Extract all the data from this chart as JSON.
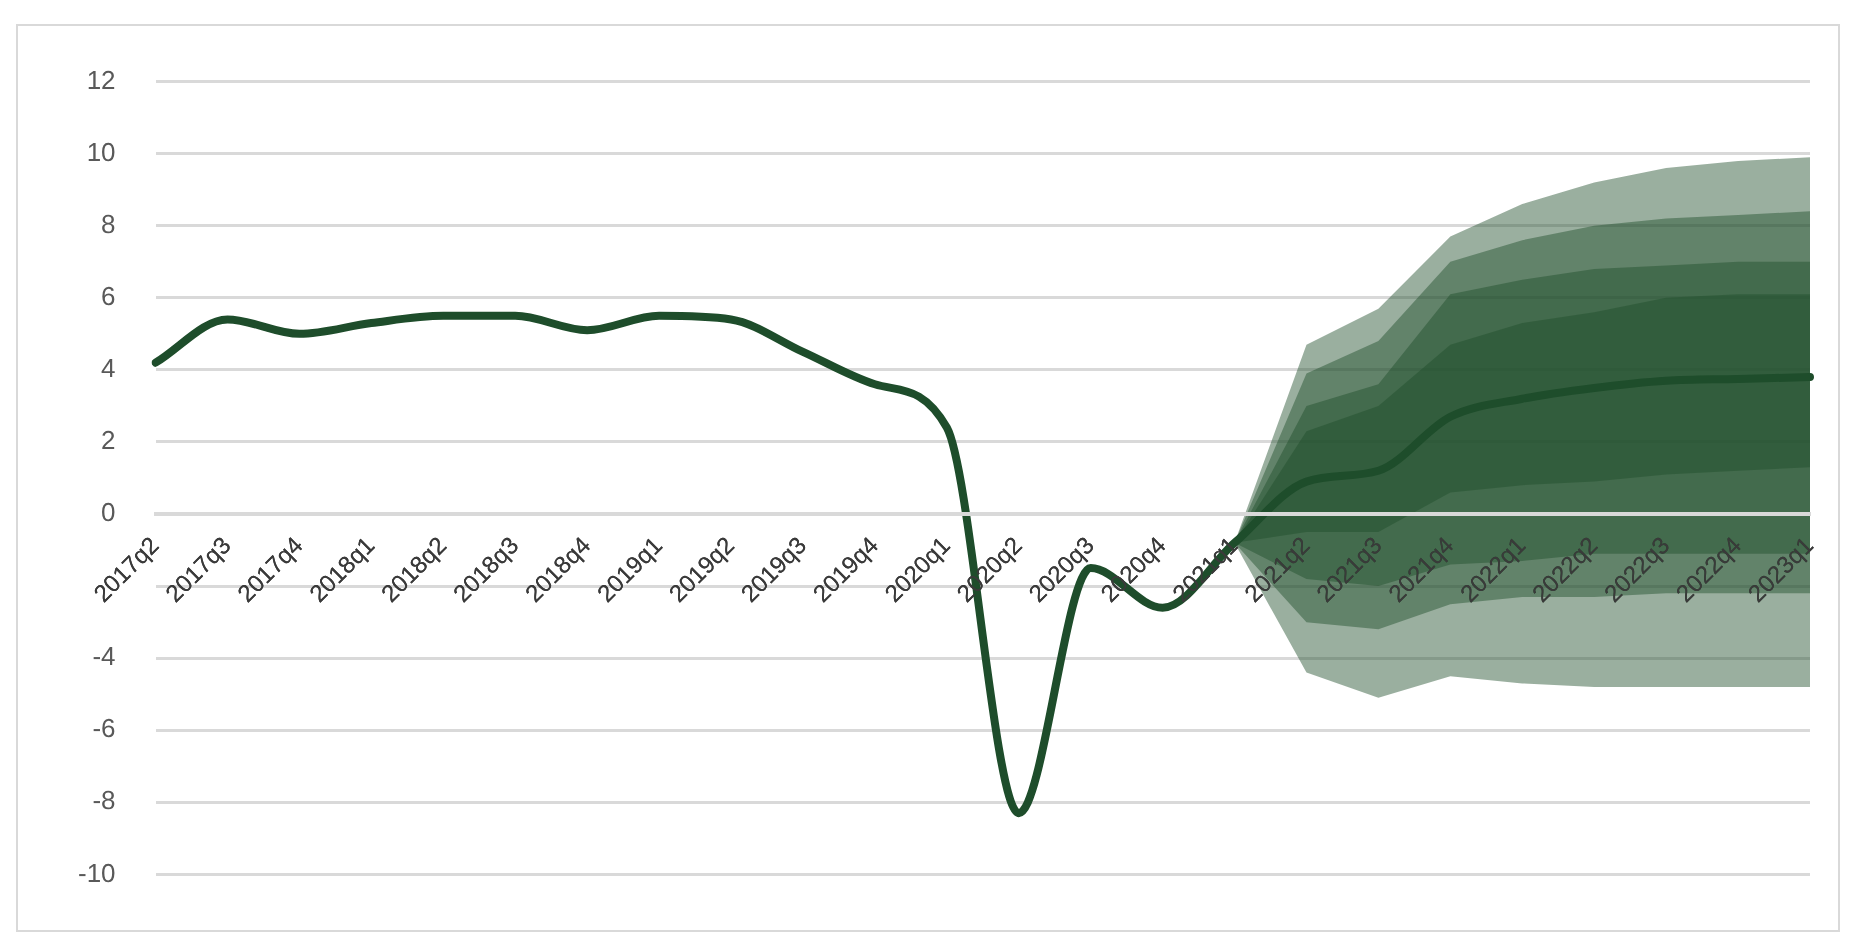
{
  "chart_data": {
    "type": "line",
    "categories": [
      "2017q2",
      "2017q3",
      "2017q4",
      "2018q1",
      "2018q2",
      "2018q3",
      "2018q4",
      "2019q1",
      "2019q2",
      "2019q3",
      "2019q4",
      "2020q1",
      "2020q2",
      "2020q3",
      "2020q4",
      "2021q1",
      "2021q2",
      "2021q3",
      "2021q4",
      "2022q1",
      "2022q2",
      "2022q3",
      "2022q4",
      "2023q1"
    ],
    "series": [
      {
        "type": "line",
        "color": "#1e4d2b",
        "values": [
          4.2,
          5.4,
          5.0,
          5.3,
          5.5,
          5.5,
          5.1,
          5.5,
          5.4,
          4.5,
          3.6,
          2.4,
          -8.3,
          -1.5,
          -2.6,
          -0.8,
          0.9,
          1.2,
          2.7,
          3.2,
          3.5,
          3.7,
          3.75,
          3.8
        ],
        "lower": [
          null,
          null,
          null,
          null,
          null,
          null,
          null,
          null,
          null,
          null,
          null,
          null,
          null,
          null,
          null,
          -0.8,
          -0.5,
          -0.5,
          0.6,
          0.8,
          0.9,
          1.1,
          1.2,
          1.3
        ],
        "upper": [
          null,
          null,
          null,
          null,
          null,
          null,
          null,
          null,
          null,
          null,
          null,
          null,
          null,
          null,
          null,
          -0.8,
          2.3,
          3.0,
          4.7,
          5.3,
          5.6,
          6.0,
          6.1,
          6.1
        ]
      },
      {
        "type": "line",
        "color": "#1e4d2b",
        "values": [
          null,
          null,
          null,
          null,
          null,
          null,
          null,
          null,
          null,
          null,
          null,
          null,
          null,
          null,
          null,
          null,
          null,
          null,
          null,
          null,
          null,
          null,
          null,
          null
        ],
        "lower": [
          null,
          null,
          null,
          null,
          null,
          null,
          null,
          null,
          null,
          null,
          null,
          null,
          null,
          null,
          null,
          -0.8,
          -1.8,
          -2.0,
          -1.4,
          -1.3,
          -1.1,
          -1.1,
          -1.1,
          -1.1
        ],
        "upper": [
          null,
          null,
          null,
          null,
          null,
          null,
          null,
          null,
          null,
          null,
          null,
          null,
          null,
          null,
          null,
          -0.8,
          3.0,
          3.6,
          6.1,
          6.5,
          6.8,
          6.9,
          7.0,
          7.0
        ]
      },
      {
        "type": "line",
        "color": "#1e4d2b",
        "values": [
          null,
          null,
          null,
          null,
          null,
          null,
          null,
          null,
          null,
          null,
          null,
          null,
          null,
          null,
          null,
          null,
          null,
          null,
          null,
          null,
          null,
          null,
          null,
          null
        ],
        "lower": [
          null,
          null,
          null,
          null,
          null,
          null,
          null,
          null,
          null,
          null,
          null,
          null,
          null,
          null,
          null,
          -0.8,
          -3.0,
          -3.2,
          -2.5,
          -2.3,
          -2.3,
          -2.2,
          -2.2,
          -2.2
        ],
        "upper": [
          null,
          null,
          null,
          null,
          null,
          null,
          null,
          null,
          null,
          null,
          null,
          null,
          null,
          null,
          null,
          -0.8,
          3.9,
          4.8,
          7.0,
          7.6,
          8.0,
          8.2,
          8.3,
          8.4
        ]
      },
      {
        "type": "line",
        "color": "#1e4d2b",
        "values": [
          null,
          null,
          null,
          null,
          null,
          null,
          null,
          null,
          null,
          null,
          null,
          null,
          null,
          null,
          null,
          null,
          null,
          null,
          null,
          null,
          null,
          null,
          null,
          null
        ],
        "lower": [
          null,
          null,
          null,
          null,
          null,
          null,
          null,
          null,
          null,
          null,
          null,
          null,
          null,
          null,
          null,
          -0.8,
          -4.4,
          -5.1,
          -4.5,
          -4.7,
          -4.8,
          -4.8,
          -4.8,
          -4.8
        ],
        "upper": [
          null,
          null,
          null,
          null,
          null,
          null,
          null,
          null,
          null,
          null,
          null,
          null,
          null,
          null,
          null,
          -0.8,
          4.7,
          5.7,
          7.7,
          8.6,
          9.2,
          9.6,
          9.8,
          9.9
        ]
      }
    ],
    "ylim": [
      -10,
      12
    ],
    "yticks": [
      -10,
      -8,
      -6,
      -4,
      {
        "value": -2,
        "label": null
      },
      0,
      2,
      4,
      6,
      8,
      10,
      12
    ],
    "grid": "y",
    "legend": false,
    "marker": "none",
    "line_style": "solid"
  }
}
